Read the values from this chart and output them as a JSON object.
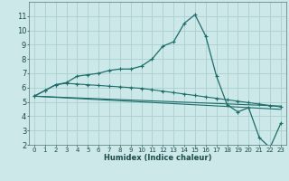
{
  "xlabel": "Humidex (Indice chaleur)",
  "background_color": "#cce8e8",
  "grid_color": "#aacfcf",
  "line_color": "#1a6e6a",
  "x_values": [
    0,
    1,
    2,
    3,
    4,
    5,
    6,
    7,
    8,
    9,
    10,
    11,
    12,
    13,
    14,
    15,
    16,
    17,
    18,
    19,
    20,
    21,
    22,
    23
  ],
  "y_flat1": [
    5.4,
    5.37,
    5.34,
    5.31,
    5.28,
    5.25,
    5.22,
    5.19,
    5.16,
    5.13,
    5.1,
    5.07,
    5.04,
    5.01,
    4.98,
    4.95,
    4.92,
    4.89,
    4.86,
    4.83,
    4.8,
    4.77,
    4.74,
    4.71
  ],
  "y_flat2": [
    5.4,
    5.36,
    5.32,
    5.28,
    5.24,
    5.2,
    5.16,
    5.12,
    5.08,
    5.04,
    5.0,
    4.96,
    4.92,
    4.88,
    4.84,
    4.8,
    4.76,
    4.72,
    4.68,
    4.64,
    4.6,
    4.56,
    4.52,
    4.48
  ],
  "y_hump": [
    5.4,
    5.8,
    6.2,
    6.3,
    6.25,
    6.2,
    6.15,
    6.1,
    6.05,
    6.0,
    5.95,
    5.85,
    5.75,
    5.65,
    5.55,
    5.45,
    5.35,
    5.25,
    5.15,
    5.05,
    4.95,
    4.85,
    4.75,
    4.65
  ],
  "y_peak": [
    5.4,
    5.8,
    6.2,
    6.35,
    6.8,
    6.9,
    7.0,
    7.2,
    7.3,
    7.3,
    7.5,
    8.0,
    8.9,
    9.2,
    10.5,
    11.1,
    9.6,
    6.8,
    4.8,
    4.3,
    4.6,
    2.5,
    1.8,
    3.5
  ],
  "ylim": [
    2,
    12
  ],
  "xlim": [
    -0.5,
    23.5
  ],
  "yticks": [
    2,
    3,
    4,
    5,
    6,
    7,
    8,
    9,
    10,
    11
  ],
  "xticks": [
    0,
    1,
    2,
    3,
    4,
    5,
    6,
    7,
    8,
    9,
    10,
    11,
    12,
    13,
    14,
    15,
    16,
    17,
    18,
    19,
    20,
    21,
    22,
    23
  ],
  "xlabel_fontsize": 6,
  "tick_fontsize": 5
}
